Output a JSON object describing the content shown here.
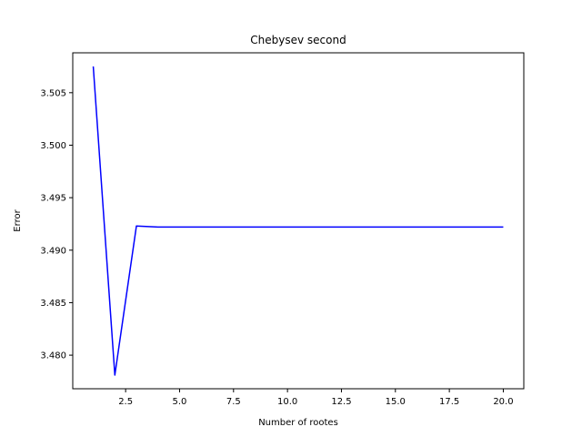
{
  "chart_data": {
    "type": "line",
    "title": "Chebysev second",
    "xlabel": "Number of rootes",
    "ylabel": "Error",
    "xlim": [
      0.05,
      20.95
    ],
    "ylim": [
      3.4768,
      3.5088
    ],
    "xticks": [
      2.5,
      5.0,
      7.5,
      10.0,
      12.5,
      15.0,
      17.5,
      20.0
    ],
    "xtick_labels": [
      "2.5",
      "5.0",
      "7.5",
      "10.0",
      "12.5",
      "15.0",
      "17.5",
      "20.0"
    ],
    "yticks": [
      3.48,
      3.485,
      3.49,
      3.495,
      3.5,
      3.505
    ],
    "ytick_labels": [
      "3.480",
      "3.485",
      "3.490",
      "3.495",
      "3.500",
      "3.505"
    ],
    "grid": false,
    "series": [
      {
        "color": "#0000ff",
        "x": [
          1,
          2,
          3,
          4,
          5,
          6,
          7,
          8,
          9,
          10,
          11,
          12,
          13,
          14,
          15,
          16,
          17,
          18,
          19,
          20
        ],
        "y": [
          3.5075,
          3.4781,
          3.4923,
          3.4922,
          3.4922,
          3.4922,
          3.4922,
          3.4922,
          3.4922,
          3.4922,
          3.4922,
          3.4922,
          3.4922,
          3.4922,
          3.4922,
          3.4922,
          3.4922,
          3.4922,
          3.4922,
          3.4922
        ]
      }
    ]
  }
}
